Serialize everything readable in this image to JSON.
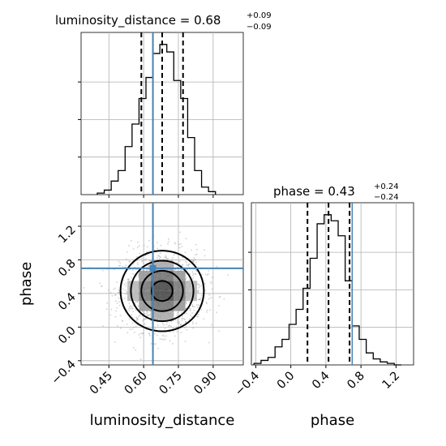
{
  "chart_data": {
    "type": "corner",
    "parameters": [
      "luminosity_distance",
      "phase"
    ],
    "truth": {
      "luminosity_distance": 0.64,
      "phase": 0.7
    },
    "truth_color": "#4682b4",
    "luminosity_distance": {
      "title_name": "luminosity_distance",
      "median": "0.68",
      "err_plus": "+0.09",
      "err_minus": "−0.09",
      "quantiles": [
        0.59,
        0.68,
        0.77
      ],
      "xlabel": "luminosity_distance",
      "xlim": [
        0.33,
        1.03
      ],
      "ticks": [
        0.45,
        0.6,
        0.75,
        0.9
      ],
      "tick_labels": [
        "0.45",
        "0.60",
        "0.75",
        "0.90"
      ],
      "hist_bin_edges": [
        0.4,
        0.43,
        0.46,
        0.49,
        0.52,
        0.55,
        0.58,
        0.61,
        0.64,
        0.67,
        0.7,
        0.73,
        0.76,
        0.79,
        0.82,
        0.85,
        0.88,
        0.91
      ],
      "hist_counts": [
        0.01,
        0.03,
        0.09,
        0.16,
        0.32,
        0.47,
        0.64,
        0.78,
        0.94,
        1.0,
        0.95,
        0.76,
        0.64,
        0.38,
        0.16,
        0.05,
        0.02
      ]
    },
    "phase": {
      "title_name": "phase",
      "median": "0.43",
      "err_plus": "+0.24",
      "err_minus": "−0.24",
      "quantiles": [
        0.19,
        0.43,
        0.67
      ],
      "xlabel": "phase",
      "ylabel": "phase",
      "xlim": [
        -0.45,
        1.4
      ],
      "ylim": [
        -0.45,
        1.48
      ],
      "ticks": [
        -0.4,
        0.0,
        0.4,
        0.8,
        1.2
      ],
      "tick_labels": [
        "−0.4",
        "0.0",
        "0.4",
        "0.8",
        "1.2"
      ],
      "hist_bin_edges": [
        -0.42,
        -0.34,
        -0.26,
        -0.18,
        -0.1,
        -0.02,
        0.06,
        0.14,
        0.22,
        0.3,
        0.38,
        0.46,
        0.54,
        0.62,
        0.7,
        0.78,
        0.86,
        0.94,
        1.02,
        1.1,
        1.18,
        1.26
      ],
      "hist_counts": [
        0.01,
        0.03,
        0.05,
        0.12,
        0.17,
        0.27,
        0.37,
        0.51,
        0.71,
        0.94,
        1.0,
        0.96,
        0.86,
        0.56,
        0.26,
        0.17,
        0.08,
        0.04,
        0.02,
        0.01,
        0.0
      ]
    },
    "density_2d": {
      "mean": [
        0.68,
        0.43
      ],
      "std": [
        0.09,
        0.24
      ],
      "contour_levels_sigma": [
        0.5,
        1.0,
        1.5,
        2.0
      ]
    }
  }
}
